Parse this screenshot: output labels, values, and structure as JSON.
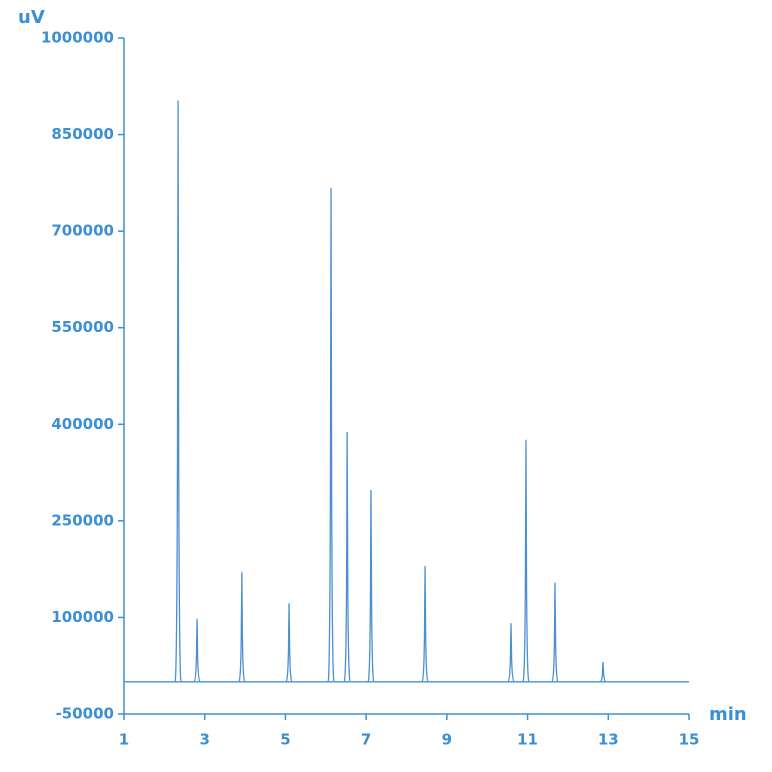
{
  "chart_data": {
    "type": "chromatogram",
    "x_label": "min",
    "y_label": "uV",
    "x": [
      2.34,
      2.81,
      3.92,
      5.09,
      6.13,
      6.53,
      7.12,
      8.46,
      10.59,
      10.96,
      11.68,
      12.87
    ],
    "values": [
      903000,
      98000,
      170000,
      122000,
      767000,
      388000,
      298000,
      180000,
      91000,
      376000,
      154000,
      31000
    ],
    "baseline": 0,
    "color": "#4a90d0",
    "xlim": [
      1,
      15
    ],
    "xticks": [
      1,
      3,
      5,
      7,
      9,
      11,
      13,
      15
    ],
    "ylim": [
      -50000,
      1000000
    ],
    "yticks": [
      -50000,
      100000,
      250000,
      400000,
      550000,
      700000,
      850000,
      1000000
    ]
  }
}
